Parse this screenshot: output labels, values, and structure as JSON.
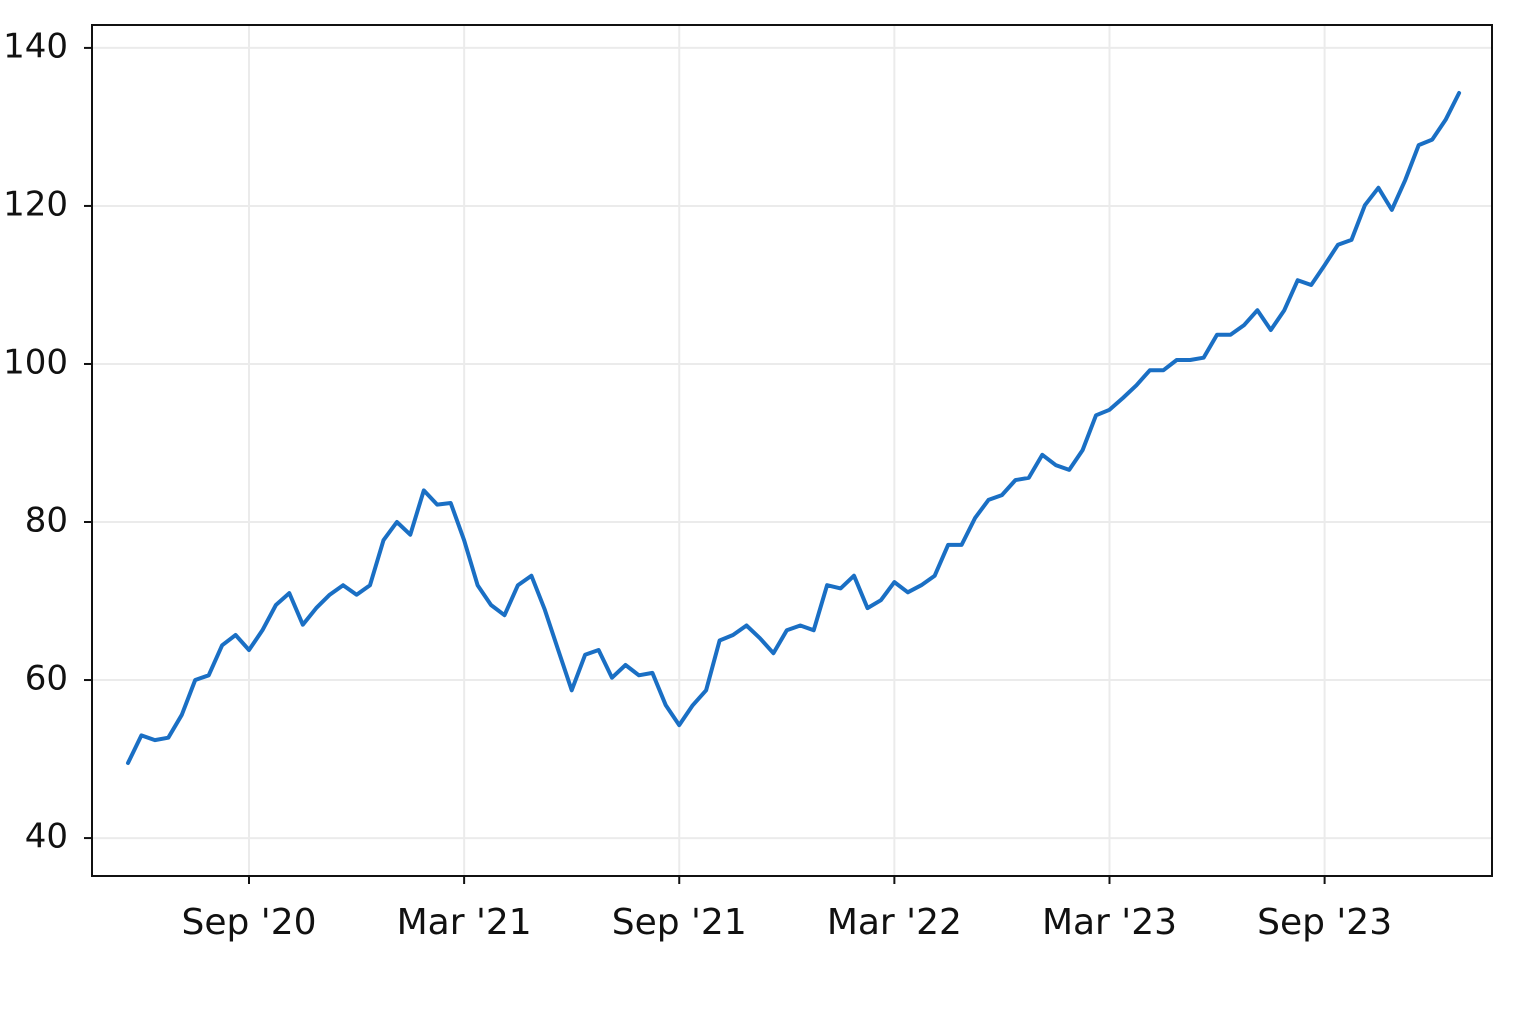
{
  "chart_data": {
    "type": "line",
    "categories": [
      null,
      null,
      null,
      null,
      null,
      null,
      null,
      null,
      null,
      "Sep '20",
      null,
      null,
      null,
      null,
      null,
      null,
      null,
      null,
      null,
      null,
      null,
      null,
      null,
      null,
      null,
      "Mar '21",
      null,
      null,
      null,
      null,
      null,
      null,
      null,
      null,
      null,
      null,
      null,
      null,
      null,
      null,
      null,
      "Sep '21",
      null,
      null,
      null,
      null,
      null,
      null,
      null,
      null,
      null,
      null,
      null,
      null,
      null,
      null,
      null,
      "Mar '22",
      null,
      null,
      null,
      null,
      null,
      null,
      null,
      null,
      null,
      null,
      null,
      null,
      null,
      null,
      null,
      "Mar '23",
      null,
      null,
      null,
      null,
      null,
      null,
      null,
      null,
      null,
      null,
      null,
      null,
      null,
      null,
      null,
      "Sep '23",
      null,
      null,
      null,
      null,
      null,
      null,
      null,
      null,
      null,
      null
    ],
    "series": [
      {
        "color": "#1a6fc4",
        "values": [
          49.5,
          53,
          52.4,
          52.7,
          55.6,
          60,
          60.6,
          64.4,
          65.7,
          63.8,
          66.3,
          69.5,
          71,
          67,
          69.1,
          70.8,
          72,
          70.8,
          72,
          77.7,
          80,
          78.4,
          84,
          82.2,
          82.4,
          77.7,
          72,
          69.5,
          68.2,
          72,
          73.2,
          68.9,
          63.8,
          58.7,
          63.2,
          63.8,
          60.3,
          61.9,
          60.6,
          60.9,
          56.8,
          54.3,
          56.8,
          58.7,
          65,
          65.7,
          66.9,
          65.3,
          63.4,
          66.3,
          66.9,
          66.3,
          72,
          71.6,
          73.2,
          69.1,
          70.1,
          72.4,
          71.1,
          72,
          73.2,
          77.1,
          77.1,
          80.5,
          82.8,
          83.4,
          85.3,
          85.6,
          88.5,
          87.2,
          86.6,
          89.1,
          93.5,
          94.2,
          95.7,
          97.3,
          99.2,
          99.2,
          100.5,
          100.5,
          100.8,
          103.7,
          103.7,
          104.9,
          106.8,
          104.3,
          106.8,
          110.6,
          110,
          112.5,
          115.1,
          115.7,
          120.1,
          122.3,
          119.5,
          123.3,
          127.7,
          128.4,
          130.9,
          134.3
        ]
      }
    ],
    "ylim": [
      35.2,
      142.9
    ],
    "yticks": [
      40,
      60,
      80,
      100,
      120,
      140
    ],
    "grid": true
  }
}
